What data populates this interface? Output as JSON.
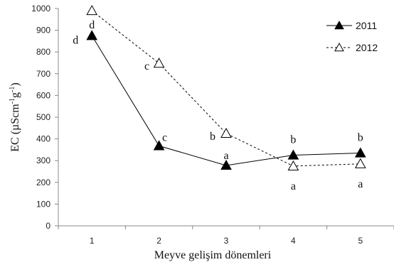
{
  "chart_data": {
    "type": "line",
    "title": "",
    "xlabel": "Meyve gelişim dönemleri",
    "ylabel": "EC (µScm-1g-1)",
    "ylabel_parts": {
      "before": "EC (µScm",
      "sup1": "-1",
      "mid": "g",
      "sup2": "-1",
      "after": ")"
    },
    "x": [
      1,
      2,
      3,
      4,
      5
    ],
    "xticks": [
      "1",
      "2",
      "3",
      "4",
      "5"
    ],
    "xlim": [
      0.5,
      5.5
    ],
    "ylim": [
      0,
      1000
    ],
    "yticks": [
      "0",
      "100",
      "200",
      "300",
      "400",
      "500",
      "600",
      "700",
      "800",
      "900",
      "1000"
    ],
    "grid": false,
    "legend_position": "top-right",
    "series": [
      {
        "name": "2011",
        "values": [
          875,
          368,
          278,
          325,
          335
        ],
        "marker": "filled-triangle",
        "line_style": "solid",
        "color": "#000000",
        "labels": [
          "d",
          "c",
          "a",
          "b",
          "b"
        ]
      },
      {
        "name": "2012",
        "values": [
          990,
          748,
          425,
          275,
          285
        ],
        "marker": "open-triangle",
        "line_style": "dashed",
        "color": "#000000",
        "labels": [
          "d",
          "c",
          "b",
          "a",
          "a"
        ]
      }
    ]
  }
}
